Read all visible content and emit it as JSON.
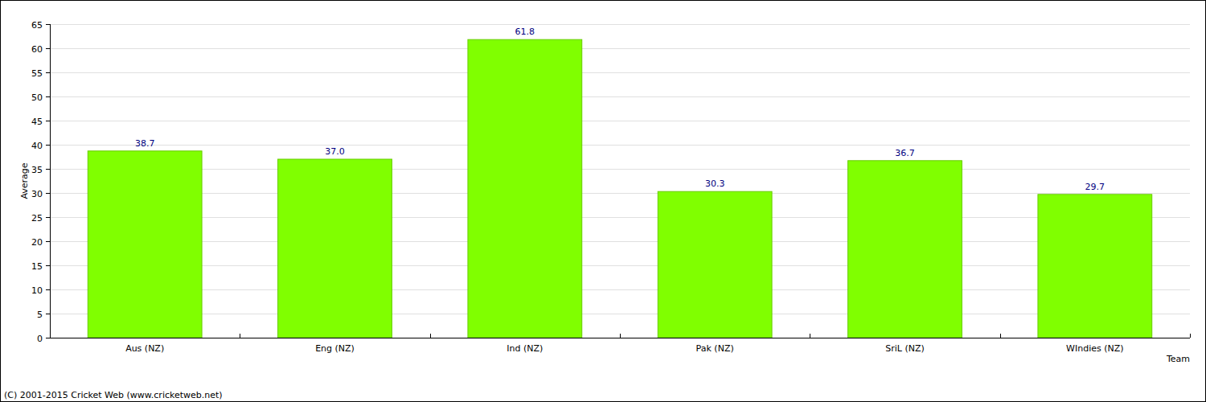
{
  "chart_data": {
    "type": "bar",
    "xlabel": "Team",
    "ylabel": "Average",
    "annotations": [
      "(C) 2001-2015 Cricket Web (www.cricketweb.net)"
    ],
    "categories": [
      "Aus (NZ)",
      "Eng (NZ)",
      "Ind (NZ)",
      "Pak (NZ)",
      "SriL (NZ)",
      "WIndies (NZ)"
    ],
    "values": [
      38.7,
      37.0,
      61.8,
      30.3,
      36.7,
      29.7
    ],
    "value_labels": [
      "38.7",
      "37.0",
      "61.8",
      "30.3",
      "36.7",
      "29.7"
    ],
    "data_labels": true,
    "color": "#80ff00",
    "ylim": [
      0,
      65
    ],
    "yticks": [
      0,
      5,
      10,
      15,
      20,
      25,
      30,
      35,
      40,
      45,
      50,
      55,
      60,
      65
    ],
    "grid": true
  }
}
